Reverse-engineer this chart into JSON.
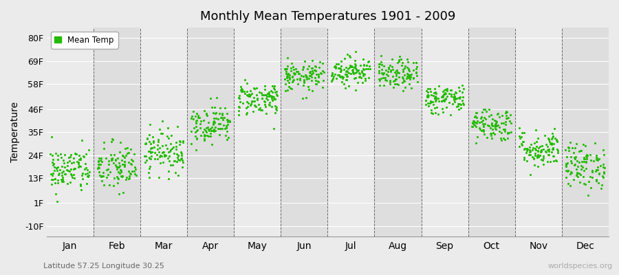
{
  "title": "Monthly Mean Temperatures 1901 - 2009",
  "ylabel": "Temperature",
  "subtitle_left": "Latitude 57.25 Longitude 30.25",
  "watermark": "worldspecies.org",
  "legend_label": "Mean Temp",
  "dot_color": "#22bb00",
  "background_color": "#ebebeb",
  "band_light": "#ebebeb",
  "band_dark": "#dedede",
  "ytick_labels": [
    "-10F",
    "1F",
    "13F",
    "24F",
    "35F",
    "46F",
    "58F",
    "69F",
    "80F"
  ],
  "ytick_values": [
    -10,
    1,
    13,
    24,
    35,
    46,
    58,
    69,
    80
  ],
  "ylim": [
    -15,
    85
  ],
  "months": [
    "Jan",
    "Feb",
    "Mar",
    "Apr",
    "May",
    "Jun",
    "Jul",
    "Aug",
    "Sep",
    "Oct",
    "Nov",
    "Dec"
  ],
  "month_mean_F": [
    17.0,
    18.0,
    26.0,
    39.0,
    51.0,
    61.5,
    64.5,
    62.5,
    51.0,
    39.0,
    27.0,
    19.0
  ],
  "month_std_F": [
    5.5,
    6.0,
    5.0,
    4.5,
    4.0,
    3.5,
    3.5,
    3.5,
    3.5,
    4.0,
    4.5,
    5.5
  ],
  "n_years": 109,
  "seed": 42
}
